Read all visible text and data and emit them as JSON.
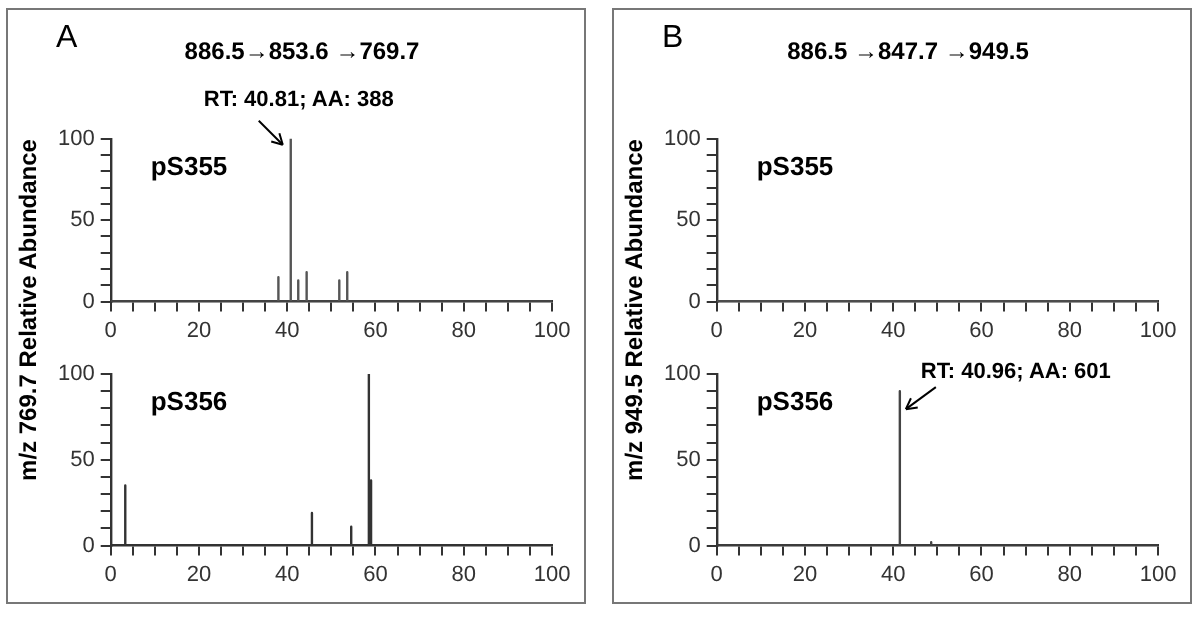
{
  "chart_data": [
    {
      "type": "line",
      "title": "886.5→853.6 →769.7",
      "ylabel": "m/z 769.7 Relative Abundance",
      "annotations": [
        "A",
        "pS355",
        {
          "text": "RT: 40.81; AA: 388",
          "x": 40.8,
          "y": 100
        }
      ],
      "x": [
        0,
        38,
        38,
        38,
        40.8,
        40.8,
        40.8,
        42.5,
        42.5,
        42.5,
        44.4,
        44.4,
        44.4,
        51.8,
        51.8,
        51.8,
        53.6,
        53.6,
        53.6,
        100
      ],
      "series": [
        {
          "color": "#555555",
          "values": [
            0,
            0,
            15,
            0,
            0,
            100,
            0,
            0,
            13,
            0,
            0,
            18,
            0,
            0,
            13,
            0,
            0,
            18,
            0,
            0
          ]
        }
      ],
      "xlim": [
        0,
        100
      ],
      "ylim": [
        0,
        100
      ],
      "xticks": [
        0,
        {
          "value": 5,
          "label": null
        },
        {
          "value": 10,
          "label": null
        },
        {
          "value": 15,
          "label": null
        },
        20,
        {
          "value": 25,
          "label": null
        },
        {
          "value": 30,
          "label": null
        },
        {
          "value": 35,
          "label": null
        },
        40,
        {
          "value": 45,
          "label": null
        },
        {
          "value": 50,
          "label": null
        },
        {
          "value": 55,
          "label": null
        },
        60,
        {
          "value": 65,
          "label": null
        },
        {
          "value": 70,
          "label": null
        },
        {
          "value": 75,
          "label": null
        },
        80,
        {
          "value": 85,
          "label": null
        },
        {
          "value": 90,
          "label": null
        },
        {
          "value": 95,
          "label": null
        },
        100
      ],
      "yticks": [
        0,
        {
          "value": 10,
          "label": null
        },
        {
          "value": 20,
          "label": null
        },
        {
          "value": 30,
          "label": null
        },
        {
          "value": 40,
          "label": null
        },
        50,
        {
          "value": 60,
          "label": null
        },
        {
          "value": 70,
          "label": null
        },
        {
          "value": 80,
          "label": null
        },
        {
          "value": 90,
          "label": null
        },
        100
      ],
      "marker": "none"
    },
    {
      "type": "line",
      "annotations": [
        "pS356"
      ],
      "x": [
        0,
        3.3,
        3.3,
        3.3,
        45.6,
        45.6,
        45.6,
        54.5,
        54.5,
        54.5,
        58.5,
        58.5,
        58.5,
        59,
        59,
        59,
        100
      ],
      "series": [
        {
          "color": "#333333",
          "values": [
            0,
            0,
            35,
            0,
            0,
            19,
            0,
            0,
            11,
            0,
            0,
            100,
            0,
            0,
            38,
            0,
            0
          ]
        }
      ],
      "xlim": [
        0,
        100
      ],
      "ylim": [
        0,
        100
      ],
      "xticks": [
        0,
        {
          "value": 5,
          "label": null
        },
        {
          "value": 10,
          "label": null
        },
        {
          "value": 15,
          "label": null
        },
        20,
        {
          "value": 25,
          "label": null
        },
        {
          "value": 30,
          "label": null
        },
        {
          "value": 35,
          "label": null
        },
        40,
        {
          "value": 45,
          "label": null
        },
        {
          "value": 50,
          "label": null
        },
        {
          "value": 55,
          "label": null
        },
        60,
        {
          "value": 65,
          "label": null
        },
        {
          "value": 70,
          "label": null
        },
        {
          "value": 75,
          "label": null
        },
        80,
        {
          "value": 85,
          "label": null
        },
        {
          "value": 90,
          "label": null
        },
        {
          "value": 95,
          "label": null
        },
        100
      ],
      "yticks": [
        0,
        {
          "value": 10,
          "label": null
        },
        {
          "value": 20,
          "label": null
        },
        {
          "value": 30,
          "label": null
        },
        {
          "value": 40,
          "label": null
        },
        50,
        {
          "value": 60,
          "label": null
        },
        {
          "value": 70,
          "label": null
        },
        {
          "value": 80,
          "label": null
        },
        {
          "value": 90,
          "label": null
        },
        100
      ],
      "marker": "none"
    },
    {
      "type": "line",
      "title": "886.5 →847.7 →949.5",
      "ylabel": "m/z 949.5 Relative Abundance",
      "annotations": [
        "B",
        "pS355"
      ],
      "x": [
        0,
        100
      ],
      "series": [
        {
          "color": "#666666",
          "values": [
            0,
            0
          ]
        }
      ],
      "xlim": [
        0,
        100
      ],
      "ylim": [
        0,
        100
      ],
      "xticks": [
        0,
        {
          "value": 5,
          "label": null
        },
        {
          "value": 10,
          "label": null
        },
        {
          "value": 15,
          "label": null
        },
        20,
        {
          "value": 25,
          "label": null
        },
        {
          "value": 30,
          "label": null
        },
        {
          "value": 35,
          "label": null
        },
        40,
        {
          "value": 45,
          "label": null
        },
        {
          "value": 50,
          "label": null
        },
        {
          "value": 55,
          "label": null
        },
        60,
        {
          "value": 65,
          "label": null
        },
        {
          "value": 70,
          "label": null
        },
        {
          "value": 75,
          "label": null
        },
        80,
        {
          "value": 85,
          "label": null
        },
        {
          "value": 90,
          "label": null
        },
        {
          "value": 95,
          "label": null
        },
        100
      ],
      "yticks": [
        0,
        {
          "value": 10,
          "label": null
        },
        {
          "value": 20,
          "label": null
        },
        {
          "value": 30,
          "label": null
        },
        {
          "value": 40,
          "label": null
        },
        50,
        {
          "value": 60,
          "label": null
        },
        {
          "value": 70,
          "label": null
        },
        {
          "value": 80,
          "label": null
        },
        {
          "value": 90,
          "label": null
        },
        100
      ],
      "marker": "none"
    },
    {
      "type": "line",
      "annotations": [
        "pS356",
        {
          "text": "RT: 40.96; AA: 601",
          "x": 41.5,
          "y": 90
        }
      ],
      "x": [
        0,
        41.5,
        41.5,
        41.5,
        48.6,
        48.6,
        48.6,
        100
      ],
      "series": [
        {
          "color": "#444444",
          "values": [
            0,
            0,
            90,
            0,
            0,
            2,
            0,
            0
          ]
        }
      ],
      "xlim": [
        0,
        100
      ],
      "ylim": [
        0,
        100
      ],
      "xticks": [
        0,
        {
          "value": 5,
          "label": null
        },
        {
          "value": 10,
          "label": null
        },
        {
          "value": 15,
          "label": null
        },
        20,
        {
          "value": 25,
          "label": null
        },
        {
          "value": 30,
          "label": null
        },
        {
          "value": 35,
          "label": null
        },
        40,
        {
          "value": 45,
          "label": null
        },
        {
          "value": 50,
          "label": null
        },
        {
          "value": 55,
          "label": null
        },
        60,
        {
          "value": 65,
          "label": null
        },
        {
          "value": 70,
          "label": null
        },
        {
          "value": 75,
          "label": null
        },
        80,
        {
          "value": 85,
          "label": null
        },
        {
          "value": 90,
          "label": null
        },
        {
          "value": 95,
          "label": null
        },
        100
      ],
      "yticks": [
        0,
        {
          "value": 10,
          "label": null
        },
        {
          "value": 20,
          "label": null
        },
        {
          "value": 30,
          "label": null
        },
        {
          "value": 40,
          "label": null
        },
        50,
        {
          "value": 60,
          "label": null
        },
        {
          "value": 70,
          "label": null
        },
        {
          "value": 80,
          "label": null
        },
        {
          "value": 90,
          "label": null
        },
        100
      ],
      "marker": "none"
    }
  ]
}
